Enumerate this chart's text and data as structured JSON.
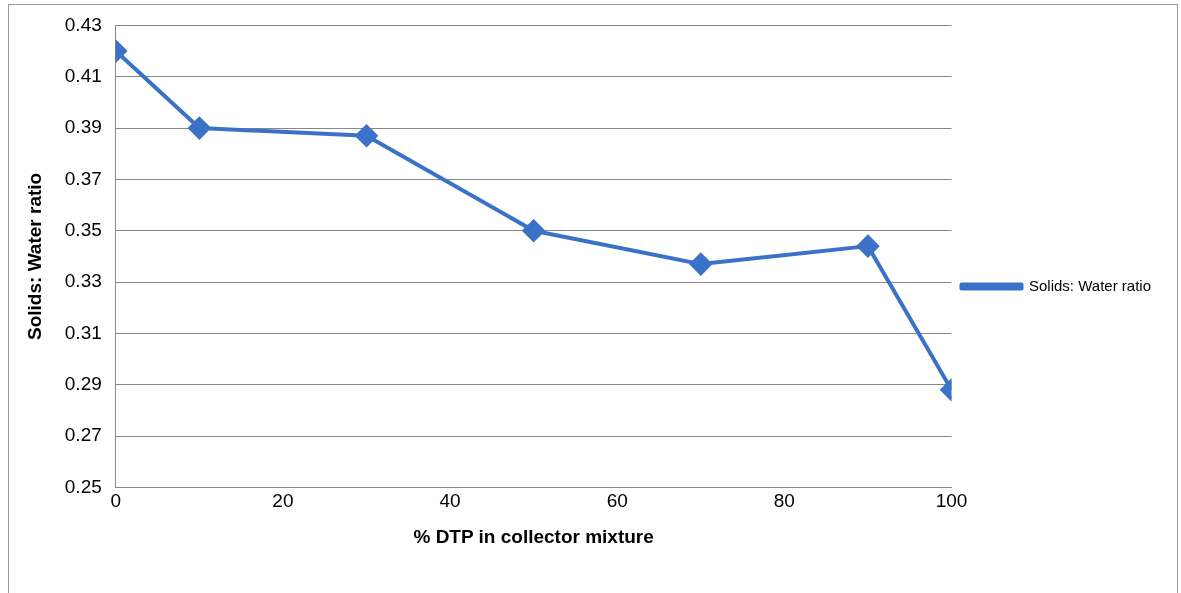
{
  "chart_data": {
    "type": "line",
    "xlabel": "% DTP in collector mixture",
    "ylabel": "Solids: Water ratio",
    "x": [
      0,
      10,
      30,
      50,
      70,
      90,
      100
    ],
    "series": [
      {
        "name": "Solids: Water ratio",
        "color": "#3a72c8",
        "values": [
          0.42,
          0.39,
          0.387,
          0.35,
          0.337,
          0.344,
          0.288
        ]
      }
    ],
    "xlim": [
      0,
      100
    ],
    "xticks": [
      0,
      20,
      40,
      60,
      80,
      100
    ],
    "ylim": [
      0.25,
      0.43
    ],
    "yticks": [
      0.25,
      0.27,
      0.29,
      0.31,
      0.33,
      0.35,
      0.37,
      0.39,
      0.41,
      0.43
    ],
    "grid": "y",
    "legend": "right",
    "marker": "diamond",
    "line_style": "solid"
  }
}
